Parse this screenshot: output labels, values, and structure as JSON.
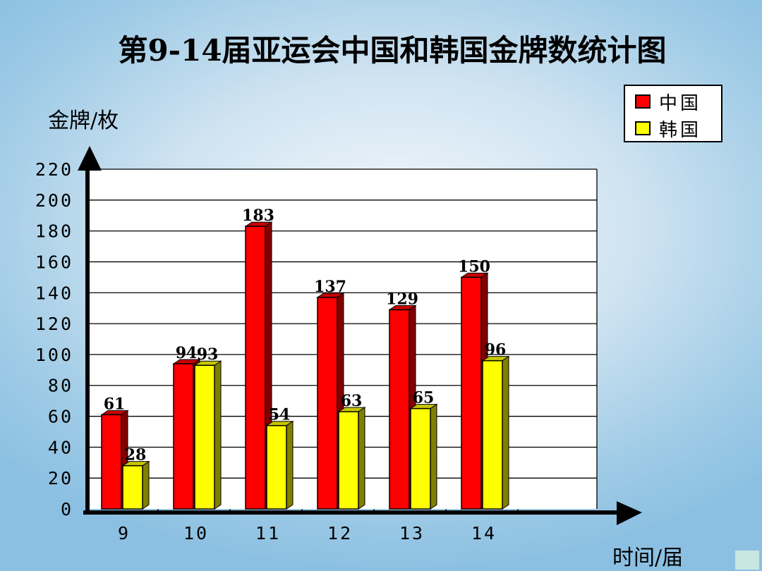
{
  "title": "第9-14届亚运会中国和韩国金牌数统计图",
  "colors": {
    "china": "#ff0000",
    "korea": "#ffff00"
  },
  "chart_data": {
    "type": "bar",
    "title": "第9-14届亚运会中国和韩国金牌数统计图",
    "xlabel": "时间/届",
    "ylabel": "金牌/枚",
    "categories": [
      "9",
      "10",
      "11",
      "12",
      "13",
      "14"
    ],
    "series": [
      {
        "name": "中国",
        "values": [
          61,
          94,
          183,
          137,
          129,
          150
        ],
        "labels": [
          "61",
          "94",
          "183",
          "137",
          "129",
          "150"
        ]
      },
      {
        "name": "韩国",
        "values": [
          28,
          93,
          54,
          63,
          65,
          96
        ],
        "labels": [
          "28",
          "93",
          "54",
          "63",
          "65",
          "96"
        ]
      }
    ],
    "ylim": [
      0,
      220
    ],
    "yticks": [
      "0",
      "20",
      "40",
      "60",
      "80",
      "100",
      "120",
      "140",
      "160",
      "180",
      "200",
      "220"
    ],
    "grid": true,
    "legend": "top-right"
  }
}
